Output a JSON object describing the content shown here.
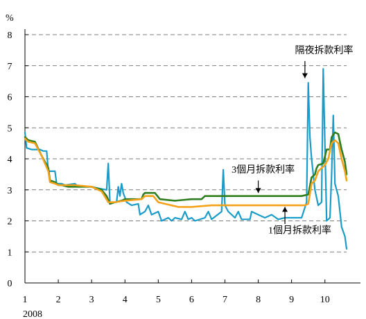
{
  "chart_data": {
    "type": "line",
    "y_unit_label": "%",
    "x_year_label": "2008",
    "xlim": [
      1,
      10.65
    ],
    "ylim": [
      0,
      8
    ],
    "x_ticks": [
      1,
      2,
      3,
      4,
      5,
      6,
      7,
      8,
      9,
      10
    ],
    "x_tick_labels": [
      "1",
      "2",
      "3",
      "4",
      "5",
      "6",
      "7",
      "8",
      "9",
      "10"
    ],
    "y_ticks": [
      0,
      1,
      2,
      3,
      4,
      5,
      6,
      7,
      8
    ],
    "y_tick_labels": [
      "0",
      "1",
      "2",
      "3",
      "4",
      "5",
      "6",
      "7",
      "8"
    ],
    "grid": "horizontal-dashed",
    "series": [
      {
        "name": "隔夜拆款利率",
        "color": "#1a9cc9",
        "points": [
          [
            1.0,
            4.85
          ],
          [
            1.05,
            4.35
          ],
          [
            1.2,
            4.3
          ],
          [
            1.45,
            4.3
          ],
          [
            1.55,
            4.25
          ],
          [
            1.65,
            4.25
          ],
          [
            1.7,
            3.6
          ],
          [
            1.9,
            3.6
          ],
          [
            1.95,
            3.2
          ],
          [
            2.1,
            3.2
          ],
          [
            2.2,
            3.15
          ],
          [
            2.5,
            3.2
          ],
          [
            2.55,
            3.15
          ],
          [
            2.85,
            3.1
          ],
          [
            2.95,
            3.1
          ],
          [
            3.2,
            3.05
          ],
          [
            3.45,
            3.0
          ],
          [
            3.5,
            3.85
          ],
          [
            3.55,
            2.6
          ],
          [
            3.75,
            2.6
          ],
          [
            3.8,
            3.1
          ],
          [
            3.85,
            2.8
          ],
          [
            3.9,
            3.2
          ],
          [
            3.95,
            2.9
          ],
          [
            4.05,
            2.6
          ],
          [
            4.2,
            2.5
          ],
          [
            4.4,
            2.55
          ],
          [
            4.45,
            2.2
          ],
          [
            4.6,
            2.3
          ],
          [
            4.7,
            2.5
          ],
          [
            4.8,
            2.2
          ],
          [
            5.0,
            2.3
          ],
          [
            5.1,
            2.0
          ],
          [
            5.3,
            2.1
          ],
          [
            5.4,
            2.0
          ],
          [
            5.5,
            2.1
          ],
          [
            5.7,
            2.05
          ],
          [
            5.8,
            2.3
          ],
          [
            5.9,
            2.05
          ],
          [
            6.0,
            2.1
          ],
          [
            6.1,
            2.0
          ],
          [
            6.4,
            2.1
          ],
          [
            6.5,
            2.3
          ],
          [
            6.6,
            2.05
          ],
          [
            6.9,
            2.3
          ],
          [
            6.95,
            3.65
          ],
          [
            7.0,
            2.5
          ],
          [
            7.1,
            2.3
          ],
          [
            7.3,
            2.1
          ],
          [
            7.4,
            2.3
          ],
          [
            7.5,
            2.05
          ],
          [
            7.75,
            2.05
          ],
          [
            7.8,
            2.3
          ],
          [
            8.0,
            2.2
          ],
          [
            8.2,
            2.1
          ],
          [
            8.4,
            2.2
          ],
          [
            8.6,
            2.05
          ],
          [
            8.8,
            2.1
          ],
          [
            9.0,
            2.1
          ],
          [
            9.3,
            2.1
          ],
          [
            9.45,
            2.6
          ],
          [
            9.5,
            6.45
          ],
          [
            9.55,
            4.7
          ],
          [
            9.6,
            4.0
          ],
          [
            9.7,
            3.0
          ],
          [
            9.8,
            2.5
          ],
          [
            9.9,
            2.6
          ],
          [
            9.95,
            6.9
          ],
          [
            10.05,
            2.0
          ],
          [
            10.15,
            2.1
          ],
          [
            10.2,
            3.5
          ],
          [
            10.25,
            5.4
          ],
          [
            10.3,
            3.2
          ],
          [
            10.4,
            2.8
          ],
          [
            10.5,
            1.8
          ],
          [
            10.6,
            1.5
          ],
          [
            10.65,
            1.1
          ]
        ]
      },
      {
        "name": "3個月拆款利率",
        "color": "#2e7d1f",
        "points": [
          [
            1.0,
            4.7
          ],
          [
            1.1,
            4.6
          ],
          [
            1.3,
            4.55
          ],
          [
            1.5,
            4.1
          ],
          [
            1.7,
            3.7
          ],
          [
            1.75,
            3.3
          ],
          [
            1.9,
            3.25
          ],
          [
            2.0,
            3.15
          ],
          [
            2.1,
            3.15
          ],
          [
            2.3,
            3.1
          ],
          [
            2.6,
            3.1
          ],
          [
            3.0,
            3.1
          ],
          [
            3.3,
            3.0
          ],
          [
            3.45,
            2.8
          ],
          [
            3.55,
            2.55
          ],
          [
            3.7,
            2.6
          ],
          [
            3.9,
            2.65
          ],
          [
            4.0,
            2.7
          ],
          [
            4.2,
            2.7
          ],
          [
            4.5,
            2.7
          ],
          [
            4.55,
            2.85
          ],
          [
            4.6,
            2.9
          ],
          [
            4.9,
            2.9
          ],
          [
            5.05,
            2.7
          ],
          [
            5.5,
            2.65
          ],
          [
            6.0,
            2.7
          ],
          [
            6.3,
            2.7
          ],
          [
            6.4,
            2.8
          ],
          [
            7.0,
            2.8
          ],
          [
            7.5,
            2.8
          ],
          [
            7.9,
            2.8
          ],
          [
            8.5,
            2.8
          ],
          [
            9.0,
            2.8
          ],
          [
            9.3,
            2.8
          ],
          [
            9.5,
            2.85
          ],
          [
            9.6,
            3.4
          ],
          [
            9.7,
            3.5
          ],
          [
            9.75,
            3.7
          ],
          [
            9.8,
            3.8
          ],
          [
            9.95,
            3.85
          ],
          [
            10.05,
            4.3
          ],
          [
            10.15,
            4.3
          ],
          [
            10.2,
            4.7
          ],
          [
            10.3,
            4.85
          ],
          [
            10.4,
            4.8
          ],
          [
            10.5,
            4.3
          ],
          [
            10.6,
            3.9
          ],
          [
            10.65,
            3.5
          ]
        ]
      },
      {
        "name": "1個月拆款利率",
        "color": "#f5a21b",
        "points": [
          [
            1.0,
            4.65
          ],
          [
            1.1,
            4.55
          ],
          [
            1.3,
            4.5
          ],
          [
            1.5,
            4.1
          ],
          [
            1.7,
            3.6
          ],
          [
            1.75,
            3.25
          ],
          [
            1.9,
            3.2
          ],
          [
            2.0,
            3.15
          ],
          [
            2.1,
            3.15
          ],
          [
            2.5,
            3.15
          ],
          [
            3.0,
            3.1
          ],
          [
            3.3,
            2.95
          ],
          [
            3.5,
            2.6
          ],
          [
            3.7,
            2.6
          ],
          [
            4.0,
            2.65
          ],
          [
            4.5,
            2.7
          ],
          [
            4.6,
            2.8
          ],
          [
            4.85,
            2.8
          ],
          [
            5.0,
            2.6
          ],
          [
            5.2,
            2.55
          ],
          [
            5.6,
            2.45
          ],
          [
            6.0,
            2.45
          ],
          [
            6.6,
            2.5
          ],
          [
            7.0,
            2.5
          ],
          [
            7.5,
            2.5
          ],
          [
            8.0,
            2.5
          ],
          [
            8.5,
            2.5
          ],
          [
            9.0,
            2.5
          ],
          [
            9.4,
            2.5
          ],
          [
            9.5,
            2.55
          ],
          [
            9.6,
            3.2
          ],
          [
            9.7,
            3.3
          ],
          [
            9.8,
            3.6
          ],
          [
            9.9,
            3.7
          ],
          [
            10.0,
            3.8
          ],
          [
            10.1,
            4.0
          ],
          [
            10.2,
            4.5
          ],
          [
            10.3,
            4.6
          ],
          [
            10.4,
            4.5
          ],
          [
            10.5,
            4.0
          ],
          [
            10.6,
            3.6
          ],
          [
            10.65,
            3.3
          ]
        ]
      }
    ],
    "annotations": [
      {
        "id": "overnight",
        "text": "隔夜拆款利率",
        "label_x": 9.1,
        "label_y": 7.4,
        "arrow_from": [
          9.4,
          7.15
        ],
        "arrow_to": [
          9.4,
          6.6
        ]
      },
      {
        "id": "three_month",
        "text": "3個月拆款利率",
        "label_x": 7.2,
        "label_y": 3.55,
        "arrow_from": [
          8.0,
          3.3
        ],
        "arrow_to": [
          8.0,
          2.9
        ]
      },
      {
        "id": "one_month",
        "text": "1個月拆款利率",
        "label_x": 8.3,
        "label_y": 1.6,
        "arrow_from": [
          8.8,
          1.9
        ],
        "arrow_to": [
          8.8,
          2.45
        ]
      }
    ]
  }
}
